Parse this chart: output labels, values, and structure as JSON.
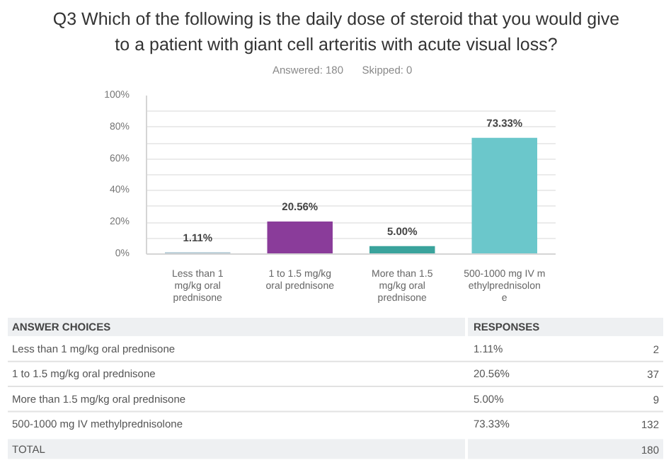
{
  "chart_data": [
    {
      "type": "bar",
      "title": "Q3 Which of the following is the daily dose of steroid that you would give to a patient with giant cell arteritis with acute visual loss?",
      "annotations": [
        "Answered: 180",
        "Skipped: 0"
      ],
      "categories": [
        "Less than 1 mg/kg oral prednisone",
        "1 to 1.5 mg/kg oral prednisone",
        "More than 1.5 mg/kg oral prednisone",
        "500-1000 mg IV methylprednisolone"
      ],
      "values": [
        1.11,
        20.56,
        5.0,
        73.33
      ],
      "value_labels": [
        "1.11%",
        "20.56%",
        "5.00%",
        "73.33%"
      ],
      "colors": [
        "#a9c4d0",
        "#8a3c9a",
        "#3aa39c",
        "#6bc7cb"
      ],
      "ylim": [
        0,
        100
      ],
      "yticks": [
        {
          "value": 0,
          "label": "0%"
        },
        {
          "value": 10,
          "label": null
        },
        {
          "value": 20,
          "label": "20%"
        },
        {
          "value": 30,
          "label": null
        },
        {
          "value": 40,
          "label": "40%"
        },
        {
          "value": 50,
          "label": null
        },
        {
          "value": 60,
          "label": "60%"
        },
        {
          "value": 70,
          "label": null
        },
        {
          "value": 80,
          "label": "80%"
        },
        {
          "value": 90,
          "label": null
        },
        {
          "value": 100,
          "label": "100%"
        }
      ],
      "grid": "y"
    },
    {
      "type": "other",
      "annotations": [
        "ANSWER CHOICES",
        "RESPONSES"
      ],
      "categories": [
        "Less than 1 mg/kg oral prednisone",
        "1 to 1.5 mg/kg oral prednisone",
        "More than 1.5 mg/kg oral prednisone",
        "500-1000 mg IV methylprednisolone",
        "TOTAL"
      ],
      "series": [
        {
          "values": [
            1.11,
            20.56,
            5.0,
            73.33,
            null
          ],
          "value_labels": [
            "1.11%",
            "20.56%",
            "5.00%",
            "73.33%",
            null
          ]
        },
        {
          "values": [
            2,
            37,
            9,
            132,
            180
          ]
        }
      ],
      "data_labels": true
    }
  ]
}
